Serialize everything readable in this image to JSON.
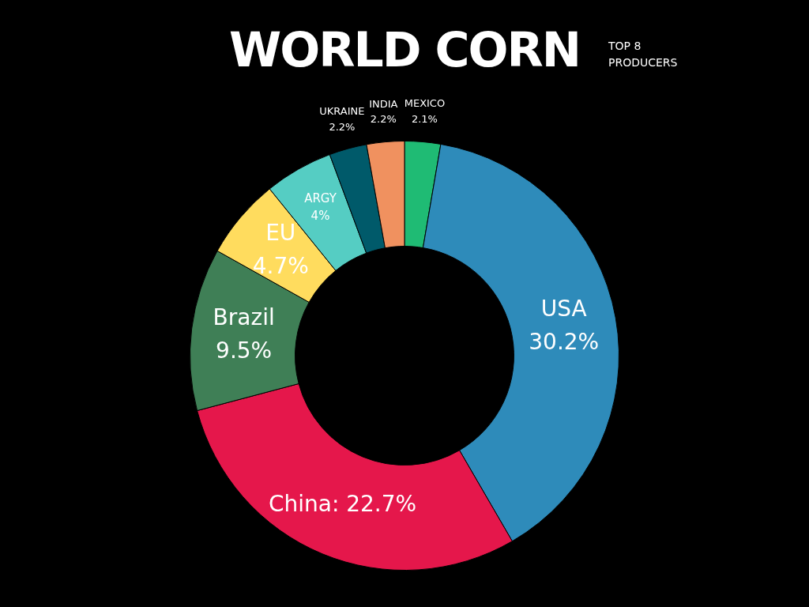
{
  "chart_data": {
    "type": "donut",
    "title": "WORLD CORN",
    "subtitle": "TOP 8\nPRODUCERS",
    "categories": [
      "MEXICO",
      "USA",
      "China",
      "Brazil",
      "EU",
      "ARGY",
      "UKRAINE",
      "INDIA"
    ],
    "values": [
      2.1,
      30.2,
      22.7,
      9.5,
      4.7,
      4,
      2.2,
      2.2
    ],
    "colors": [
      "#1fbb74",
      "#2e8bba",
      "#e5174b",
      "#3f7f56",
      "#ffdc5e",
      "#55cdc3",
      "#005a6a",
      "#f0915f"
    ],
    "value_labels": [
      "2.1%",
      "30.2%",
      "22.7%",
      "9.5%",
      "4.7%",
      "4%",
      "2.2%",
      "2.2%"
    ],
    "legend": false
  }
}
